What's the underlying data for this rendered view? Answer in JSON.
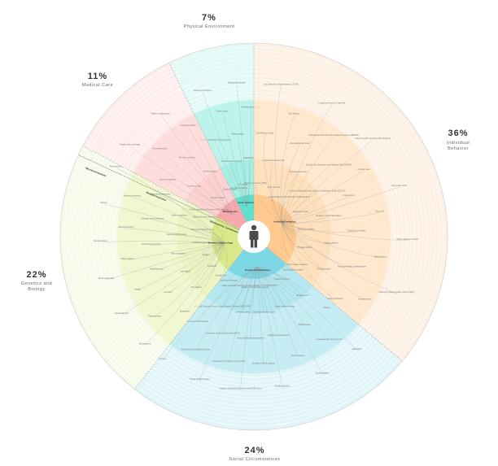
{
  "diagram": {
    "center_icon": "person-icon",
    "sectors": [
      {
        "id": "physical",
        "percent": "7%",
        "title": "Physical Environment",
        "inner_label": "Physical environment",
        "color_inner": "#5ee0cf",
        "color_mid": "#a6efe4",
        "color_outer": "#e2f9f5",
        "start_deg": -26,
        "end_deg": 0,
        "leaves": [
          "Chronic pollutant exposure (EPA)",
          "National Children's Survey (NCS)",
          "Housing conditions",
          "Transportation options",
          "Green space",
          "Air quality",
          "Water quality",
          "Residential density",
          "Walkability",
          "Neighborhood safety"
        ]
      },
      {
        "id": "behavior",
        "percent": "36%",
        "title": "Individual Behavior",
        "inner_label": "Individual behavior",
        "color_inner": "#ffc98f",
        "color_mid": "#ffe0bd",
        "color_outer": "#fdf1e5",
        "start_deg": 0,
        "end_deg": 130,
        "leaves": [
          "Big Five Inventory (BFI)",
          "Self-Efficacy Scale",
          "Life Orientation Test Revised (LOT-R)",
          "Conscientiousness trait",
          "Self efficacy",
          "Optimism trait",
          "Life satisfaction level",
          "Cognitive function in later life",
          "Psychological traits",
          "Behavioral Risk Factor Surveillance System (BRFSS)",
          "Generalized Anxiety Disorder Scale (GAD-7)",
          "Alcohol Use Disorders Identification Test (AUDIT)",
          "Patient Health Questionnaire (PHQ-9)",
          "Center for Epidemiologic Studies Depression Scale (CES-D)",
          "Anxiety level",
          "Happiness level",
          "Anxiety level",
          "Depression level",
          "Negative mood side effects",
          "Drug use",
          "Alcohol use habits",
          "Tobacco use habits",
          "Other substance habits",
          "Sleep patterns",
          "Diet patterns",
          "Physical activity",
          "Physical Activity Questionnaire",
          "Pittsburgh Sleep Quality Index (PSQI)",
          "Sun behaviors",
          "Sexual activity",
          "Motor vehicle behavior",
          "Safety behaviors"
        ]
      },
      {
        "id": "social",
        "percent": "24%",
        "title": "Social Circumstances",
        "inner_label": "Social circumstances",
        "color_inner": "#7dd8e6",
        "color_mid": "#b4e7f0",
        "color_outer": "#e1f5f9",
        "start_deg": 130,
        "end_deg": 218,
        "leaves": [
          "Socioeconomic status",
          "Income",
          "Education",
          "Employment",
          "Language and literacy level",
          "Family structure",
          "Marital status",
          "Social isolation",
          "Social connectedness",
          "Discrimination",
          "Civic participation",
          "Religious involvement",
          "Family cohesion",
          "Quality of social support",
          "Quality of family support",
          "Quality of community support",
          "Early childhood development",
          "Adverse Childhood Experiences (ACE) score",
          "Lifetime stress",
          "Community Tracking Survey (CTS)",
          "National Health Interview Survey (NHIS)",
          "American Community Survey (ACS)",
          "Social Network Index",
          "Medical Outcomes Study Social Support Survey (MOS-SSS)",
          "Everyday Discrimination Scale",
          "Rural/urban indicator",
          "Perceived Stress Scale",
          "Census"
        ]
      },
      {
        "id": "genetics",
        "percent": "22%",
        "title": "Genetics and Biology",
        "inner_label": "Genetics and biology",
        "inner_label_2": "Biochemistry Components",
        "ring_label_1": "Macroenvironment",
        "ring_label_2": "Microenvironment",
        "color_inner": "#d8e98a",
        "color_mid": "#ebf4c2",
        "color_outer": "#f6faea",
        "start_deg": 218,
        "end_deg": 298,
        "leaves": [
          "Genetic test",
          "Epigenetic",
          "Metabolome",
          "Microbiome",
          "Transcriptome",
          "Proteome",
          "Genome",
          "Hormonal level",
          "Lab values",
          "Height",
          "Weight",
          "Waist-hip ratio",
          "Body mass index",
          "Blood pressure",
          "Body function",
          "Cardiovascular status",
          "Respiratory function",
          "Renal function",
          "Neurological function",
          "Sensory function",
          "Musculoskeletal function",
          "Strength and endurance",
          "Fitness",
          "Vision screening",
          "Hearing screening",
          "Blood pressure screening",
          "Cholesterol screening",
          "Physical exam"
        ]
      },
      {
        "id": "medical",
        "percent": "11%",
        "title": "Medical Care",
        "inner_label": "Medical care",
        "color_inner": "#f9a9ab",
        "color_mid": "#fdd2d2",
        "color_outer": "#fdeeed",
        "start_deg": 298,
        "end_deg": 334,
        "leaves": [
          "Patient Activation Measure (PAM survey)",
          "Vaccine registries",
          "Health plan coverage",
          "Access to care",
          "Preventive care",
          "Provider quality",
          "Provider network",
          "Patient engagement",
          "Health literacy",
          "Insurance status",
          "Quality of care"
        ]
      }
    ]
  }
}
